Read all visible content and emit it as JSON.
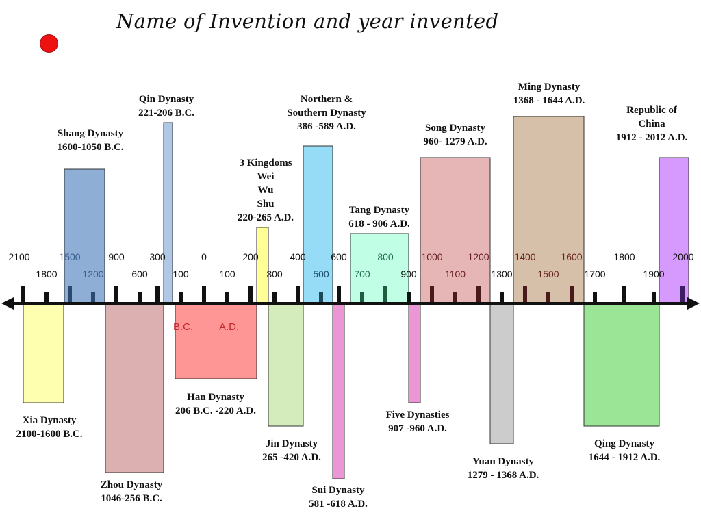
{
  "title": "Name of Invention and year invented",
  "era_labels": {
    "bc": "B.C.",
    "ad": "A.D."
  },
  "top_ticks": [
    {
      "label": "2100",
      "color": "#111111"
    },
    {
      "label": "1500",
      "color": "#3a5f8f"
    },
    {
      "label": "900",
      "color": "#111111"
    },
    {
      "label": "300",
      "color": "#111111"
    },
    {
      "label": "0",
      "color": "#111111"
    },
    {
      "label": "200",
      "color": "#111111"
    },
    {
      "label": "400",
      "color": "#111111"
    },
    {
      "label": "600",
      "color": "#111111"
    },
    {
      "label": "800",
      "color": "#1e6e50"
    },
    {
      "label": "1000",
      "color": "#6b2222"
    },
    {
      "label": "1200",
      "color": "#6b2222"
    },
    {
      "label": "1400",
      "color": "#6b2222"
    },
    {
      "label": "1600",
      "color": "#6b2222"
    },
    {
      "label": "1800",
      "color": "#111111"
    },
    {
      "label": "2000",
      "color": "#111111"
    }
  ],
  "bottom_ticks": [
    {
      "label": "1800",
      "color": "#111111"
    },
    {
      "label": "1200",
      "color": "#3a5f8f"
    },
    {
      "label": "600",
      "color": "#111111"
    },
    {
      "label": "100",
      "color": "#111111"
    },
    {
      "label": "100",
      "color": "#111111"
    },
    {
      "label": "300",
      "color": "#111111"
    },
    {
      "label": "500",
      "color": "#1a4a6a"
    },
    {
      "label": "700",
      "color": "#1e6e50"
    },
    {
      "label": "900",
      "color": "#111111"
    },
    {
      "label": "1100",
      "color": "#6b2222"
    },
    {
      "label": "1300",
      "color": "#111111"
    },
    {
      "label": "1500",
      "color": "#6b2222"
    },
    {
      "label": "1700",
      "color": "#111111"
    },
    {
      "label": "1900",
      "color": "#111111"
    }
  ],
  "dynasties": [
    {
      "name": "Xia Dynasty",
      "dates": "2100-1600 B.C.",
      "color": "#ffffb0"
    },
    {
      "name": "Shang Dynasty",
      "dates": "1600-1050 B.C.",
      "color": "#8eaed6"
    },
    {
      "name": "Zhou Dynasty",
      "dates": "1046-256 B.C.",
      "color": "#dcb0b0"
    },
    {
      "name": "Qin Dynasty",
      "dates": "221-206 B.C.",
      "color": "#b0c8e6"
    },
    {
      "name": "Han Dynasty",
      "dates": "206 B.C. -220 A.D.",
      "color": "#ff9696"
    },
    {
      "name": "3 Kingdoms",
      "sub": [
        "Wei",
        "Wu",
        "Shu"
      ],
      "dates": "220-265 A.D.",
      "color": "#ffff96"
    },
    {
      "name": "Jin Dynasty",
      "dates": "265 -420 A.D.",
      "color": "#d4ecbc"
    },
    {
      "name": "Northern &",
      "name2": "Southern Dynasty",
      "dates": "386 -589 A.D.",
      "color": "#96dcf6"
    },
    {
      "name": "Sui Dynasty",
      "dates": "581 -618 A.D.",
      "color": "#ec96d6"
    },
    {
      "name": "Tang Dynasty",
      "dates": "618 - 906 A.D.",
      "color": "#c0ffe6"
    },
    {
      "name": "Five Dynasties",
      "dates": "907 -960 A.D.",
      "color": "#ec96d6"
    },
    {
      "name": "Song Dynasty",
      "dates": "960- 1279 A.D.",
      "color": "#e6b6b6"
    },
    {
      "name": "Yuan Dynasty",
      "dates": "1279 - 1368 A.D.",
      "color": "#cccccc"
    },
    {
      "name": "Ming Dynasty",
      "dates": "1368 - 1644 A.D.",
      "color": "#d6c0aa"
    },
    {
      "name": "Qing Dynasty",
      "dates": "1644 - 1912 A.D.",
      "color": "#9ae696"
    },
    {
      "name": "Republic of",
      "name2": "China",
      "dates": "1912 - 2012 A.D.",
      "color": "#d69aff"
    }
  ]
}
